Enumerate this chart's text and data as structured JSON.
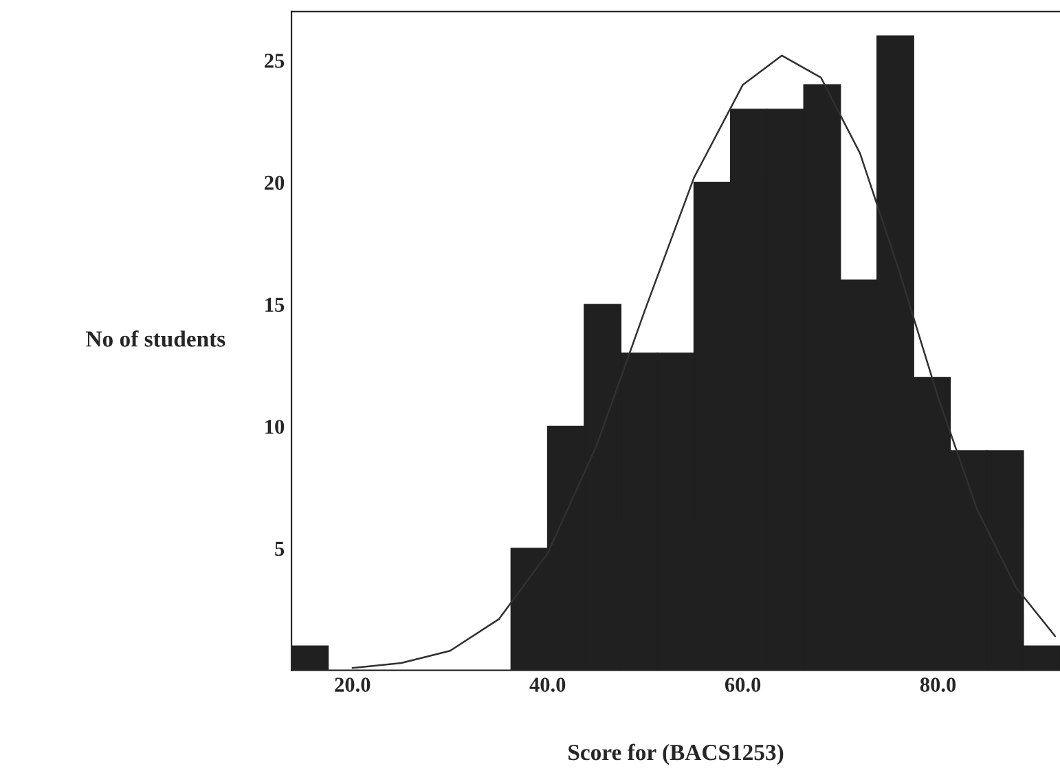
{
  "chart_data": {
    "type": "histogram",
    "xlabel": "Score for (BACS1253)",
    "ylabel": "No of students",
    "bins": [
      13.75,
      17.5,
      21.25,
      25,
      28.75,
      32.5,
      36.25,
      40,
      43.75,
      47.5,
      51.25,
      55,
      58.75,
      62.5,
      66.25,
      70,
      73.75,
      77.5,
      81.25,
      85,
      88.75,
      92.5
    ],
    "values": [
      1,
      0,
      0,
      0,
      0,
      0,
      5,
      10,
      15,
      13,
      13,
      20,
      23,
      23,
      24,
      16,
      26,
      12,
      9,
      9,
      1
    ],
    "color": "#202020",
    "series": [
      {
        "type": "line",
        "color": "#303030",
        "x": [
          20,
          25,
          30,
          35,
          40,
          45,
          50,
          55,
          60,
          64,
          68,
          72,
          76,
          80,
          84,
          88,
          92
        ],
        "values": [
          0.1,
          0.3,
          0.8,
          2.1,
          4.8,
          9.2,
          14.8,
          20.2,
          24.0,
          25.2,
          24.3,
          21.2,
          16.4,
          11.2,
          6.6,
          3.4,
          1.4
        ]
      }
    ],
    "xlim": [
      13.75,
      92.5
    ],
    "ylim": [
      0,
      27
    ],
    "xticks": [
      {
        "value": 20,
        "label": "20.0"
      },
      {
        "value": 40,
        "label": "40.0"
      },
      {
        "value": 60,
        "label": "60.0"
      },
      {
        "value": 80,
        "label": "80.0"
      }
    ],
    "yticks": [
      5,
      10,
      15,
      20,
      25
    ],
    "grid": false,
    "legend": false
  }
}
